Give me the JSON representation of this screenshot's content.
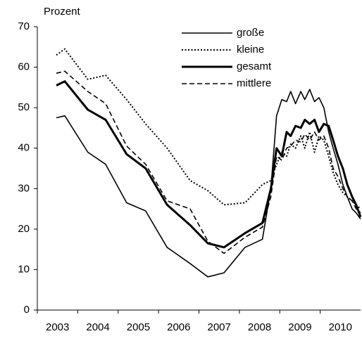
{
  "chart_data": {
    "type": "line",
    "y_label": "Prozent",
    "x": [
      2003.47,
      2003.68,
      2004.25,
      2004.69,
      2005.21,
      2005.68,
      2006.21,
      2006.78,
      2007.22,
      2007.62,
      2008.14,
      2008.57,
      2008.78,
      2008.92,
      2009.05,
      2009.17,
      2009.27,
      2009.39,
      2009.52,
      2009.62,
      2009.74,
      2009.86,
      2009.97,
      2010.09,
      2010.21,
      2010.32,
      2010.44,
      2010.56,
      2010.67,
      2010.79,
      2010.89,
      2011.0
    ],
    "series": [
      {
        "name": "große",
        "color": "#000000",
        "line_style": "solid",
        "line_width": 1.6,
        "values": [
          47.5,
          48,
          39,
          36,
          26.5,
          24.5,
          15.5,
          11.5,
          8.2,
          9.2,
          15.5,
          17.5,
          30,
          48,
          52,
          51.5,
          54,
          51,
          54,
          52,
          54.5,
          51.5,
          52.5,
          50,
          44,
          40,
          36,
          31,
          28,
          25,
          24,
          22.5
        ]
      },
      {
        "name": "kleine",
        "color": "#000000",
        "line_style": "dotted",
        "line_width": 2,
        "values": [
          63,
          64.5,
          57,
          58,
          52,
          46,
          40,
          32,
          29.5,
          26,
          26.5,
          31,
          32,
          36,
          39,
          38,
          41,
          40,
          43,
          40,
          44,
          39,
          43,
          42,
          38,
          34,
          31,
          29,
          28,
          27,
          26,
          25
        ]
      },
      {
        "name": "gesamt",
        "color": "#000000",
        "line_style": "solid",
        "line_width": 3,
        "values": [
          55.5,
          56.5,
          49.5,
          47,
          38.5,
          35,
          26,
          21,
          16.5,
          15.5,
          19,
          21.5,
          30,
          40,
          38,
          44,
          43,
          45.5,
          45,
          47,
          46,
          47,
          44,
          46,
          45.5,
          42,
          38,
          35,
          31,
          28,
          26,
          23
        ]
      },
      {
        "name": "mittlere",
        "color": "#000000",
        "line_style": "dashed",
        "line_width": 1.6,
        "values": [
          58.5,
          59,
          54,
          51,
          40.5,
          36,
          27,
          25,
          17,
          14,
          18,
          20.5,
          28,
          38,
          37,
          40,
          40.5,
          42,
          41.5,
          43.5,
          42,
          44,
          42,
          43,
          40,
          35,
          33,
          30,
          28,
          27,
          25,
          24
        ]
      }
    ],
    "xlim": [
      2003,
      2011
    ],
    "xticks": [
      2003,
      2004,
      2005,
      2006,
      2007,
      2008,
      2009,
      2010
    ],
    "ylim": [
      0,
      70
    ],
    "yticks": [
      0,
      10,
      20,
      30,
      40,
      50,
      60,
      70
    ],
    "grid": false,
    "legend": "top-right"
  }
}
